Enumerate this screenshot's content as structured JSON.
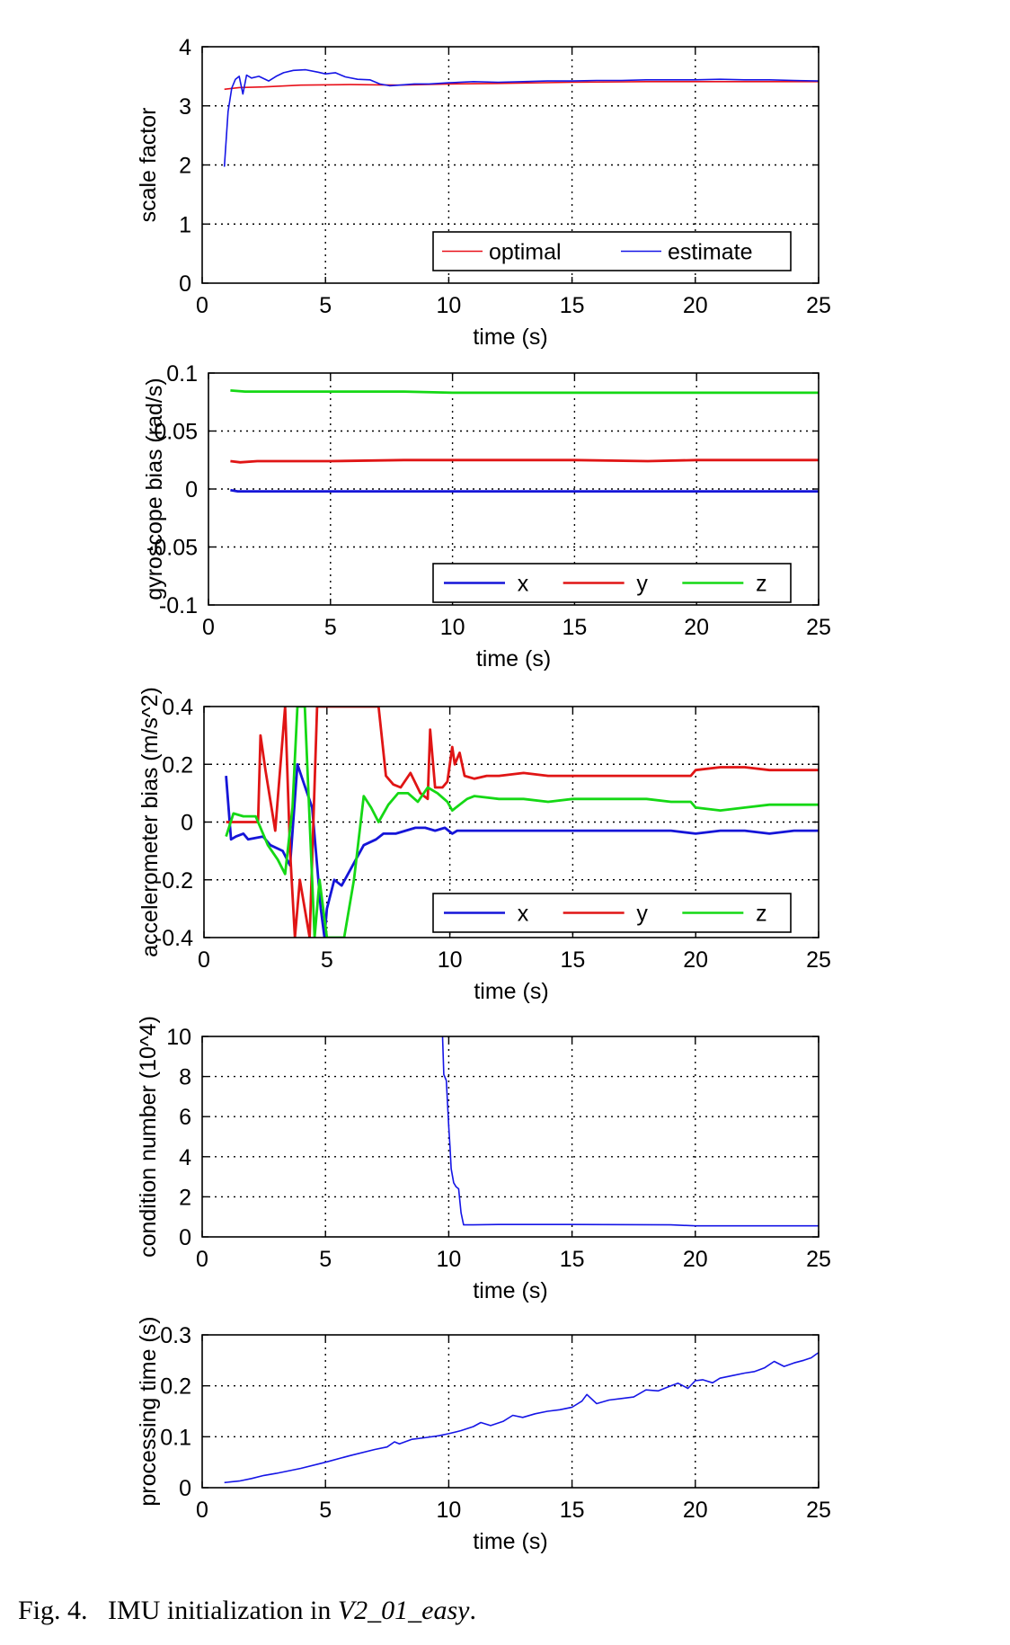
{
  "chart_data": [
    {
      "type": "line",
      "xlabel": "time (s)",
      "ylabel": "scale factor",
      "xlim": [
        0,
        25
      ],
      "ylim": [
        0,
        4
      ],
      "xticks": [
        "0",
        "5",
        "10",
        "15",
        "20",
        "25"
      ],
      "yticks": [
        "0",
        "1",
        "2",
        "3",
        "4"
      ],
      "grid": true,
      "legend": {
        "position": "bottom-right",
        "columns": 2
      },
      "series": [
        {
          "name": "optimal",
          "color": "#e8101a",
          "x": [
            0.9,
            1.5,
            2.5,
            4,
            6,
            8,
            10,
            12,
            15,
            18,
            21,
            23,
            25
          ],
          "y": [
            3.28,
            3.31,
            3.32,
            3.35,
            3.36,
            3.35,
            3.37,
            3.38,
            3.4,
            3.41,
            3.41,
            3.41,
            3.41
          ]
        },
        {
          "name": "estimate",
          "color": "#1515e6",
          "x": [
            0.9,
            1.05,
            1.2,
            1.35,
            1.5,
            1.65,
            1.8,
            2.0,
            2.3,
            2.7,
            3.0,
            3.3,
            3.7,
            4.2,
            4.7,
            5.0,
            5.4,
            5.8,
            6.3,
            6.8,
            7.2,
            7.6,
            8.0,
            8.6,
            9.2,
            10,
            11,
            12,
            13,
            14,
            15,
            16,
            17,
            18,
            19,
            20,
            21,
            22,
            23,
            24,
            25
          ],
          "y": [
            1.97,
            2.9,
            3.3,
            3.45,
            3.5,
            3.2,
            3.52,
            3.47,
            3.5,
            3.42,
            3.5,
            3.56,
            3.6,
            3.61,
            3.57,
            3.54,
            3.56,
            3.49,
            3.45,
            3.44,
            3.37,
            3.34,
            3.35,
            3.37,
            3.37,
            3.39,
            3.41,
            3.4,
            3.41,
            3.42,
            3.42,
            3.43,
            3.43,
            3.44,
            3.44,
            3.44,
            3.45,
            3.44,
            3.44,
            3.43,
            3.42
          ]
        }
      ]
    },
    {
      "type": "line",
      "xlabel": "time (s)",
      "ylabel": "gyroscope bias (rad/s)",
      "xlim": [
        0,
        25
      ],
      "ylim": [
        -0.1,
        0.1
      ],
      "xticks": [
        "0",
        "5",
        "10",
        "15",
        "20",
        "25"
      ],
      "yticks": [
        "-0.1",
        "-0.05",
        "0",
        "0.05",
        "0.1"
      ],
      "grid": true,
      "legend": {
        "position": "bottom-right",
        "columns": 3
      },
      "series": [
        {
          "name": "x",
          "color": "#1515d8",
          "x": [
            0.9,
            1.2,
            1.6,
            2.5,
            5,
            10,
            15,
            20,
            25
          ],
          "y": [
            -0.001,
            -0.002,
            -0.002,
            -0.002,
            -0.002,
            -0.002,
            -0.002,
            -0.002,
            -0.002
          ]
        },
        {
          "name": "y",
          "color": "#e01515",
          "x": [
            0.9,
            1.3,
            2,
            3,
            5,
            8,
            10,
            12,
            15,
            18,
            20,
            25
          ],
          "y": [
            0.024,
            0.023,
            0.024,
            0.024,
            0.024,
            0.025,
            0.025,
            0.025,
            0.025,
            0.024,
            0.025,
            0.025
          ]
        },
        {
          "name": "z",
          "color": "#15d815",
          "x": [
            0.9,
            1.5,
            3,
            5,
            8,
            10,
            12,
            15,
            18,
            20,
            25
          ],
          "y": [
            0.085,
            0.084,
            0.084,
            0.084,
            0.084,
            0.083,
            0.083,
            0.083,
            0.083,
            0.083,
            0.083
          ]
        }
      ]
    },
    {
      "type": "line",
      "xlabel": "time (s)",
      "ylabel": "accelerometer bias (m/s^2)",
      "xlim": [
        0,
        25
      ],
      "ylim": [
        -0.4,
        0.4
      ],
      "xticks": [
        "0",
        "5",
        "10",
        "15",
        "20",
        "25"
      ],
      "yticks": [
        "-0.4",
        "-0.2",
        "0",
        "0.2",
        "0.4"
      ],
      "grid": true,
      "legend": {
        "position": "bottom-right",
        "columns": 3
      },
      "series": [
        {
          "name": "x",
          "color": "#1515d8",
          "x": [
            0.9,
            1.1,
            1.3,
            1.6,
            1.8,
            2.4,
            2.7,
            3.2,
            3.5,
            3.8,
            4.0,
            4.4,
            4.6,
            4.75,
            4.9,
            5.0,
            5.3,
            5.6,
            6.5,
            7.0,
            7.3,
            7.8,
            8.2,
            8.6,
            9.0,
            9.4,
            9.8,
            10.1,
            10.3,
            10.6,
            11,
            12,
            13,
            14,
            15,
            16,
            17,
            18,
            19,
            20,
            21,
            22,
            23,
            24,
            25
          ],
          "y": [
            0.16,
            -0.06,
            -0.05,
            -0.04,
            -0.06,
            -0.05,
            -0.08,
            -0.1,
            -0.15,
            0.2,
            0.15,
            0.05,
            -0.15,
            -0.3,
            -0.4,
            -0.3,
            -0.2,
            -0.22,
            -0.08,
            -0.06,
            -0.04,
            -0.04,
            -0.03,
            -0.02,
            -0.02,
            -0.03,
            -0.02,
            -0.04,
            -0.03,
            -0.03,
            -0.03,
            -0.03,
            -0.03,
            -0.03,
            -0.03,
            -0.03,
            -0.03,
            -0.03,
            -0.03,
            -0.04,
            -0.03,
            -0.03,
            -0.04,
            -0.03,
            -0.03
          ]
        },
        {
          "name": "y",
          "color": "#e01515",
          "x": [
            0.9,
            1.2,
            1.6,
            2.2,
            2.3,
            2.5,
            2.9,
            3.3,
            3.5,
            3.7,
            3.9,
            4.3,
            4.6,
            7.1,
            7.4,
            7.7,
            8.0,
            8.4,
            8.8,
            9.1,
            9.2,
            9.4,
            9.7,
            9.9,
            10.1,
            10.2,
            10.4,
            10.6,
            11,
            11.5,
            12,
            13,
            14,
            15,
            16,
            17,
            18,
            19,
            19.8,
            20,
            21,
            22,
            23,
            24,
            25
          ],
          "y": [
            0.0,
            0.0,
            0.0,
            0.0,
            0.3,
            0.18,
            -0.03,
            0.4,
            -0.1,
            -0.4,
            -0.2,
            -0.4,
            0.4,
            0.4,
            0.16,
            0.13,
            0.12,
            0.17,
            0.1,
            0.08,
            0.32,
            0.12,
            0.12,
            0.14,
            0.26,
            0.2,
            0.24,
            0.16,
            0.15,
            0.16,
            0.16,
            0.17,
            0.16,
            0.16,
            0.16,
            0.16,
            0.16,
            0.16,
            0.16,
            0.18,
            0.19,
            0.19,
            0.18,
            0.18,
            0.18
          ]
        },
        {
          "name": "z",
          "color": "#15d815",
          "x": [
            0.9,
            1.2,
            1.6,
            2.1,
            2.6,
            3.0,
            3.3,
            3.6,
            3.8,
            4.1,
            4.5,
            4.7,
            5.0,
            5.3,
            5.7,
            6.1,
            6.5,
            6.8,
            7.1,
            7.5,
            7.9,
            8.3,
            8.7,
            9.1,
            9.5,
            9.9,
            10.1,
            10.4,
            10.7,
            11,
            12,
            13,
            14,
            15,
            16,
            17,
            18,
            19,
            19.8,
            20,
            21,
            22,
            23,
            24,
            25
          ],
          "y": [
            -0.05,
            0.03,
            0.02,
            0.02,
            -0.08,
            -0.13,
            -0.18,
            0.05,
            0.4,
            0.4,
            -0.4,
            -0.2,
            -0.4,
            -0.4,
            -0.4,
            -0.2,
            0.09,
            0.05,
            0.0,
            0.06,
            0.1,
            0.1,
            0.07,
            0.12,
            0.1,
            0.07,
            0.04,
            0.06,
            0.08,
            0.09,
            0.08,
            0.08,
            0.07,
            0.08,
            0.08,
            0.08,
            0.08,
            0.07,
            0.07,
            0.05,
            0.04,
            0.05,
            0.06,
            0.06,
            0.06
          ]
        }
      ]
    },
    {
      "type": "line",
      "xlabel": "time (s)",
      "ylabel": "condition number (10^4)",
      "xlim": [
        0,
        25
      ],
      "ylim": [
        0,
        10
      ],
      "xticks": [
        "0",
        "5",
        "10",
        "15",
        "20",
        "25"
      ],
      "yticks": [
        "0",
        "2",
        "4",
        "6",
        "8",
        "10"
      ],
      "grid": true,
      "series": [
        {
          "name": "condition number",
          "color": "#1515e6",
          "x": [
            9.75,
            9.8,
            9.9,
            10.0,
            10.05,
            10.1,
            10.2,
            10.3,
            10.4,
            10.5,
            10.6,
            10.8,
            11,
            12,
            15,
            19,
            20,
            25
          ],
          "y": [
            10,
            8.1,
            7.8,
            5.5,
            4.5,
            3.4,
            2.7,
            2.5,
            2.4,
            1.2,
            0.6,
            0.6,
            0.6,
            0.62,
            0.62,
            0.6,
            0.55,
            0.55
          ]
        }
      ]
    },
    {
      "type": "line",
      "xlabel": "time (s)",
      "ylabel": "processing time (s)",
      "xlim": [
        0,
        25
      ],
      "ylim": [
        0,
        0.3
      ],
      "xticks": [
        "0",
        "5",
        "10",
        "15",
        "20",
        "25"
      ],
      "yticks": [
        "0",
        "0.1",
        "0.2",
        "0.3"
      ],
      "grid": true,
      "series": [
        {
          "name": "processing time",
          "color": "#1515e6",
          "x": [
            0.9,
            1.5,
            2.0,
            2.5,
            3.0,
            4.0,
            5.0,
            6.0,
            7.0,
            7.5,
            7.8,
            8.0,
            8.5,
            9.0,
            9.6,
            10.0,
            10.5,
            11.0,
            11.3,
            11.7,
            12.2,
            12.6,
            13.0,
            13.5,
            14.0,
            14.5,
            15.0,
            15.4,
            15.6,
            16.0,
            16.5,
            17.0,
            17.5,
            18.0,
            18.5,
            19.0,
            19.3,
            19.7,
            20.0,
            20.3,
            20.7,
            21.0,
            21.5,
            22.0,
            22.4,
            22.8,
            23.2,
            23.6,
            24.0,
            24.4,
            24.7,
            24.9,
            25.0
          ],
          "y": [
            0.01,
            0.013,
            0.018,
            0.024,
            0.028,
            0.038,
            0.05,
            0.063,
            0.075,
            0.08,
            0.09,
            0.086,
            0.095,
            0.098,
            0.102,
            0.106,
            0.112,
            0.12,
            0.128,
            0.122,
            0.13,
            0.142,
            0.138,
            0.145,
            0.15,
            0.153,
            0.158,
            0.17,
            0.183,
            0.165,
            0.172,
            0.175,
            0.178,
            0.192,
            0.19,
            0.2,
            0.205,
            0.195,
            0.21,
            0.212,
            0.206,
            0.215,
            0.22,
            0.225,
            0.228,
            0.235,
            0.248,
            0.238,
            0.245,
            0.25,
            0.255,
            0.262,
            0.265
          ]
        }
      ]
    }
  ],
  "caption": {
    "prefix": "Fig. 4.",
    "text": "IMU initialization in ",
    "dataset": "V2_01_easy",
    "suffix": "."
  }
}
